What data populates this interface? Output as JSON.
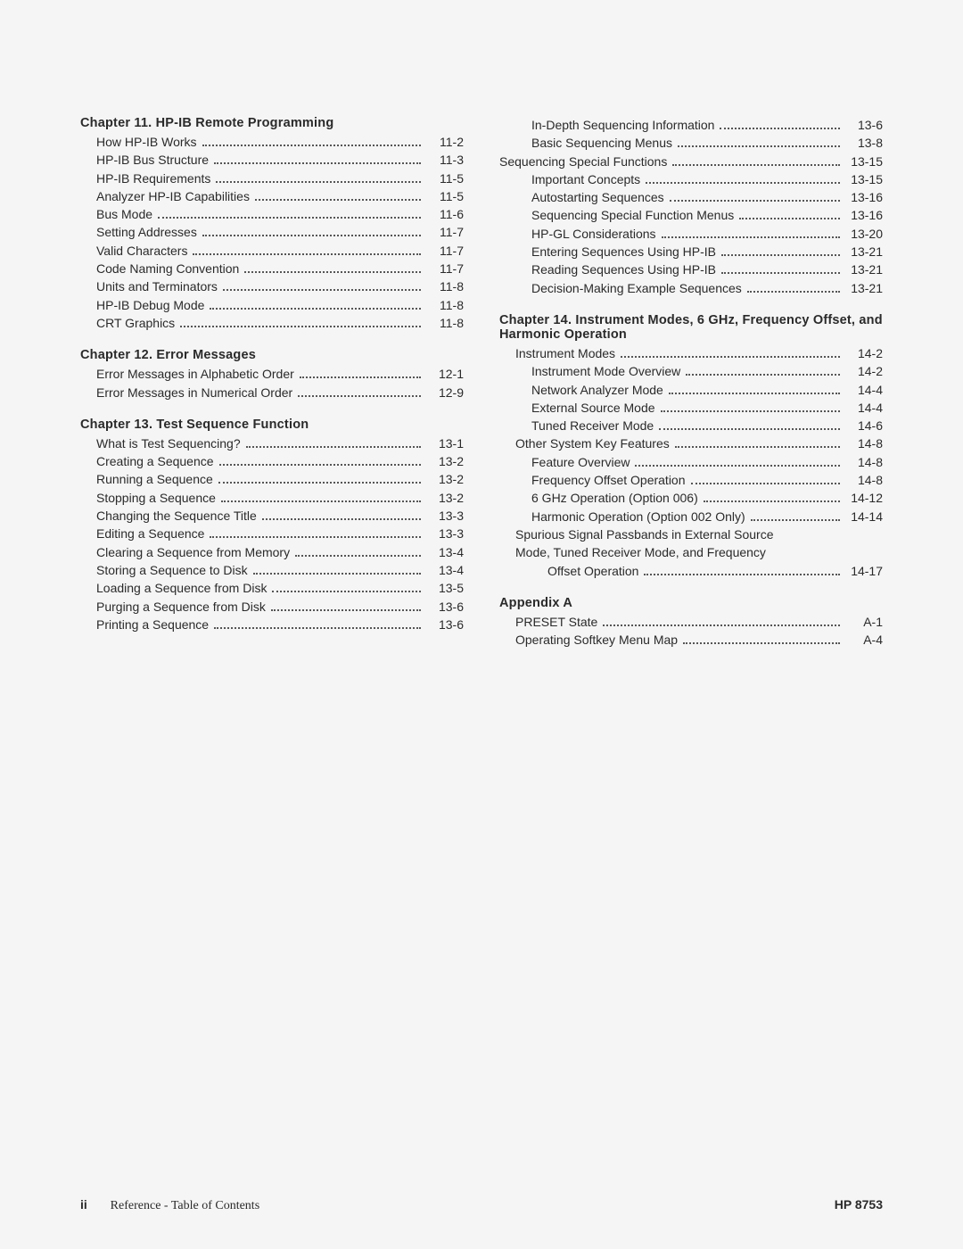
{
  "left": {
    "ch11": {
      "title": "Chapter 11.   HP-IB Remote Programming",
      "items": [
        {
          "t": "How HP-IB Works",
          "p": "11-2",
          "i": 1
        },
        {
          "t": "HP-IB Bus Structure",
          "p": "11-3",
          "i": 1
        },
        {
          "t": "HP-IB Requirements",
          "p": "11-5",
          "i": 1
        },
        {
          "t": "Analyzer HP-IB Capabilities",
          "p": "11-5",
          "i": 1
        },
        {
          "t": "Bus Mode",
          "p": "11-6",
          "i": 1
        },
        {
          "t": "Setting Addresses",
          "p": "11-7",
          "i": 1
        },
        {
          "t": "Valid Characters",
          "p": "11-7",
          "i": 1
        },
        {
          "t": "Code Naming Convention",
          "p": "11-7",
          "i": 1
        },
        {
          "t": "Units and Terminators",
          "p": "11-8",
          "i": 1
        },
        {
          "t": "HP-IB Debug Mode",
          "p": "11-8",
          "i": 1
        },
        {
          "t": "CRT Graphics",
          "p": "11-8",
          "i": 1
        }
      ]
    },
    "ch12": {
      "title": "Chapter 12.   Error Messages",
      "items": [
        {
          "t": "Error Messages in Alphabetic Order",
          "p": "12-1",
          "i": 1
        },
        {
          "t": "Error Messages in Numerical Order",
          "p": "12-9",
          "i": 1
        }
      ]
    },
    "ch13": {
      "title": "Chapter 13.   Test Sequence Function",
      "items": [
        {
          "t": "What is Test Sequencing?",
          "p": "13-1",
          "i": 1
        },
        {
          "t": "Creating a Sequence",
          "p": "13-2",
          "i": 1
        },
        {
          "t": "Running a Sequence",
          "p": "13-2",
          "i": 1
        },
        {
          "t": "Stopping a Sequence",
          "p": "13-2",
          "i": 1
        },
        {
          "t": "Changing the Sequence Title",
          "p": "13-3",
          "i": 1
        },
        {
          "t": "Editing a Sequence",
          "p": "13-3",
          "i": 1
        },
        {
          "t": "Clearing a Sequence from Memory",
          "p": "13-4",
          "i": 1
        },
        {
          "t": "Storing a Sequence to Disk",
          "p": "13-4",
          "i": 1
        },
        {
          "t": "Loading a Sequence from Disk",
          "p": "13-5",
          "i": 1
        },
        {
          "t": "Purging a Sequence from Disk",
          "p": "13-6",
          "i": 1
        },
        {
          "t": "Printing a Sequence",
          "p": "13-6",
          "i": 1
        }
      ]
    }
  },
  "right": {
    "cont13": {
      "items": [
        {
          "t": "In-Depth Sequencing Information",
          "p": "13-6",
          "i": 2
        },
        {
          "t": "Basic Sequencing Menus",
          "p": "13-8",
          "i": 2
        },
        {
          "t": "Sequencing Special Functions",
          "p": "13-15",
          "i": 0
        },
        {
          "t": "Important Concepts",
          "p": "13-15",
          "i": 2
        },
        {
          "t": "Autostarting Sequences",
          "p": "13-16",
          "i": 2
        },
        {
          "t": "Sequencing Special Function Menus",
          "p": "13-16",
          "i": 2
        },
        {
          "t": "HP-GL Considerations",
          "p": "13-20",
          "i": 2
        },
        {
          "t": "Entering Sequences Using HP-IB",
          "p": "13-21",
          "i": 2
        },
        {
          "t": "Reading Sequences Using HP-IB",
          "p": "13-21",
          "i": 2
        },
        {
          "t": "Decision-Making Example Sequences",
          "p": "13-21",
          "i": 2
        }
      ]
    },
    "ch14": {
      "title": "Chapter 14. Instrument Modes, 6 GHz, Frequency Offset, and Harmonic Operation",
      "items": [
        {
          "t": "Instrument Modes",
          "p": "14-2",
          "i": 1
        },
        {
          "t": "Instrument Mode Overview",
          "p": "14-2",
          "i": 2
        },
        {
          "t": "Network Analyzer Mode",
          "p": "14-4",
          "i": 2
        },
        {
          "t": "External Source Mode",
          "p": "14-4",
          "i": 2
        },
        {
          "t": "Tuned Receiver Mode",
          "p": "14-6",
          "i": 2
        },
        {
          "t": "Other System Key Features",
          "p": "14-8",
          "i": 1
        },
        {
          "t": "Feature Overview",
          "p": "14-8",
          "i": 2
        },
        {
          "t": "Frequency Offset Operation",
          "p": "14-8",
          "i": 2
        },
        {
          "t": "6 GHz Operation (Option 006)",
          "p": "14-12",
          "i": 2
        },
        {
          "t": "Harmonic Operation (Option 002 Only)",
          "p": "14-14",
          "i": 2
        }
      ],
      "wrap": {
        "line1": "Spurious Signal Passbands in External Source",
        "line2": "Mode, Tuned Receiver Mode, and Frequency",
        "t": "Offset Operation",
        "p": "14-17",
        "i": 3
      }
    },
    "appA": {
      "title": "Appendix A",
      "items": [
        {
          "t": "PRESET State",
          "p": "A-1",
          "i": 1
        },
        {
          "t": "Operating Softkey Menu Map",
          "p": "A-4",
          "i": 1
        }
      ]
    }
  },
  "footer": {
    "pagenum": "ii",
    "ref": "Reference - Table of Contents",
    "right": "HP 8753"
  }
}
